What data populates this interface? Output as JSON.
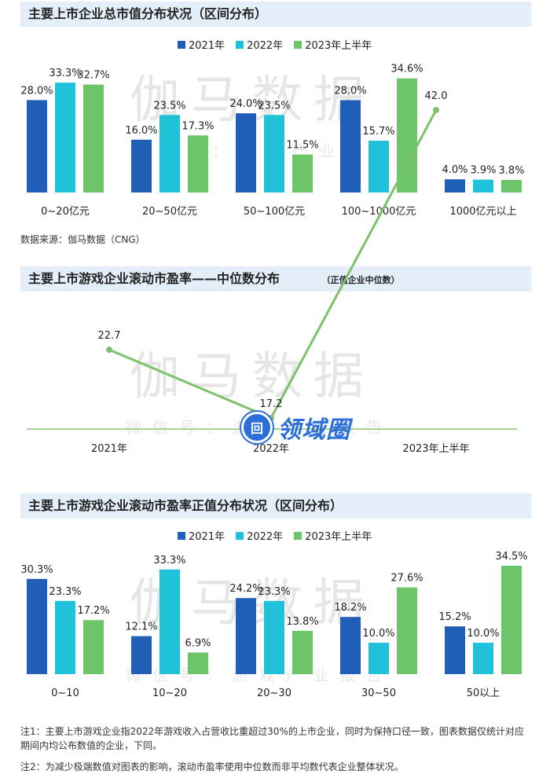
{
  "colors": {
    "y2021": "#1f5fb8",
    "y2022": "#1fc2d8",
    "y2023": "#6ec468",
    "line": "#7cc26a",
    "axis": "#6fbf5e"
  },
  "watermark": {
    "main": "伽马数据",
    "sub": "微信号：游戏产业报告"
  },
  "logo": {
    "badge": "回",
    "text": "领域圈"
  },
  "source": "数据来源：伽马数据（CNG）",
  "chart_data": [
    {
      "type": "bar",
      "title": "主要上市企业总市值分布状况（区间分布）",
      "categories": [
        "0~20亿元",
        "20~50亿元",
        "50~100亿元",
        "100~1000亿元",
        "1000亿元以上"
      ],
      "series": [
        {
          "name": "2021年",
          "values": [
            28.0,
            16.0,
            24.0,
            28.0,
            4.0
          ],
          "labels": [
            "28.0%",
            "16.0%",
            "24.0%",
            "28.0%",
            "4.0%"
          ]
        },
        {
          "name": "2022年",
          "values": [
            33.3,
            23.5,
            23.5,
            15.7,
            3.9
          ],
          "labels": [
            "33.3%",
            "23.5%",
            "23.5%",
            "15.7%",
            "3.9%"
          ]
        },
        {
          "name": "2023年上半年",
          "values": [
            32.7,
            17.3,
            11.5,
            34.6,
            3.8
          ],
          "labels": [
            "32.7%",
            "17.3%",
            "11.5%",
            "34.6%",
            "3.8%"
          ]
        }
      ],
      "ylim": [
        0,
        40
      ],
      "grid": false,
      "legend": "top-right"
    },
    {
      "type": "line",
      "title": "主要上市游戏企业滚动市盈率——中位数分布",
      "subtitle": "（正值企业中位数）",
      "categories": [
        "2021年",
        "2022年",
        "2023年上半年"
      ],
      "series": [
        {
          "name": "",
          "values": [
            22.7,
            17.2,
            42.0
          ],
          "labels": [
            "22.7",
            "17.2",
            "42.0"
          ]
        }
      ],
      "ylim": [
        10,
        50
      ],
      "grid": false
    },
    {
      "type": "bar",
      "title": "主要上市游戏企业滚动市盈率正值分布状况（区间分布）",
      "categories": [
        "0~10",
        "10~20",
        "20~30",
        "30~50",
        "50以上"
      ],
      "series": [
        {
          "name": "2021年",
          "values": [
            30.3,
            12.1,
            24.2,
            18.2,
            15.2
          ],
          "labels": [
            "30.3%",
            "12.1%",
            "24.2%",
            "18.2%",
            "15.2%"
          ]
        },
        {
          "name": "2022年",
          "values": [
            23.3,
            33.3,
            23.3,
            10.0,
            10.0
          ],
          "labels": [
            "23.3%",
            "33.3%",
            "23.3%",
            "10.0%",
            "10.0%"
          ]
        },
        {
          "name": "2023年上半年",
          "values": [
            17.2,
            6.9,
            13.8,
            27.6,
            34.5
          ],
          "labels": [
            "17.2%",
            "6.9%",
            "13.8%",
            "27.6%",
            "34.5%"
          ]
        }
      ],
      "ylim": [
        0,
        40
      ],
      "grid": false,
      "legend": "top-right"
    }
  ],
  "notes": [
    "注1：主要上市游戏企业指2022年游戏收入占营收比重超过30%的上市企业，同时为保持口径一致，图表数据仅统计对应期间内均公布数值的企业，下同。",
    "注2：为减少极端数值对图表的影响，滚动市盈率使用中位数而非平均数代表企业整体状况。"
  ]
}
